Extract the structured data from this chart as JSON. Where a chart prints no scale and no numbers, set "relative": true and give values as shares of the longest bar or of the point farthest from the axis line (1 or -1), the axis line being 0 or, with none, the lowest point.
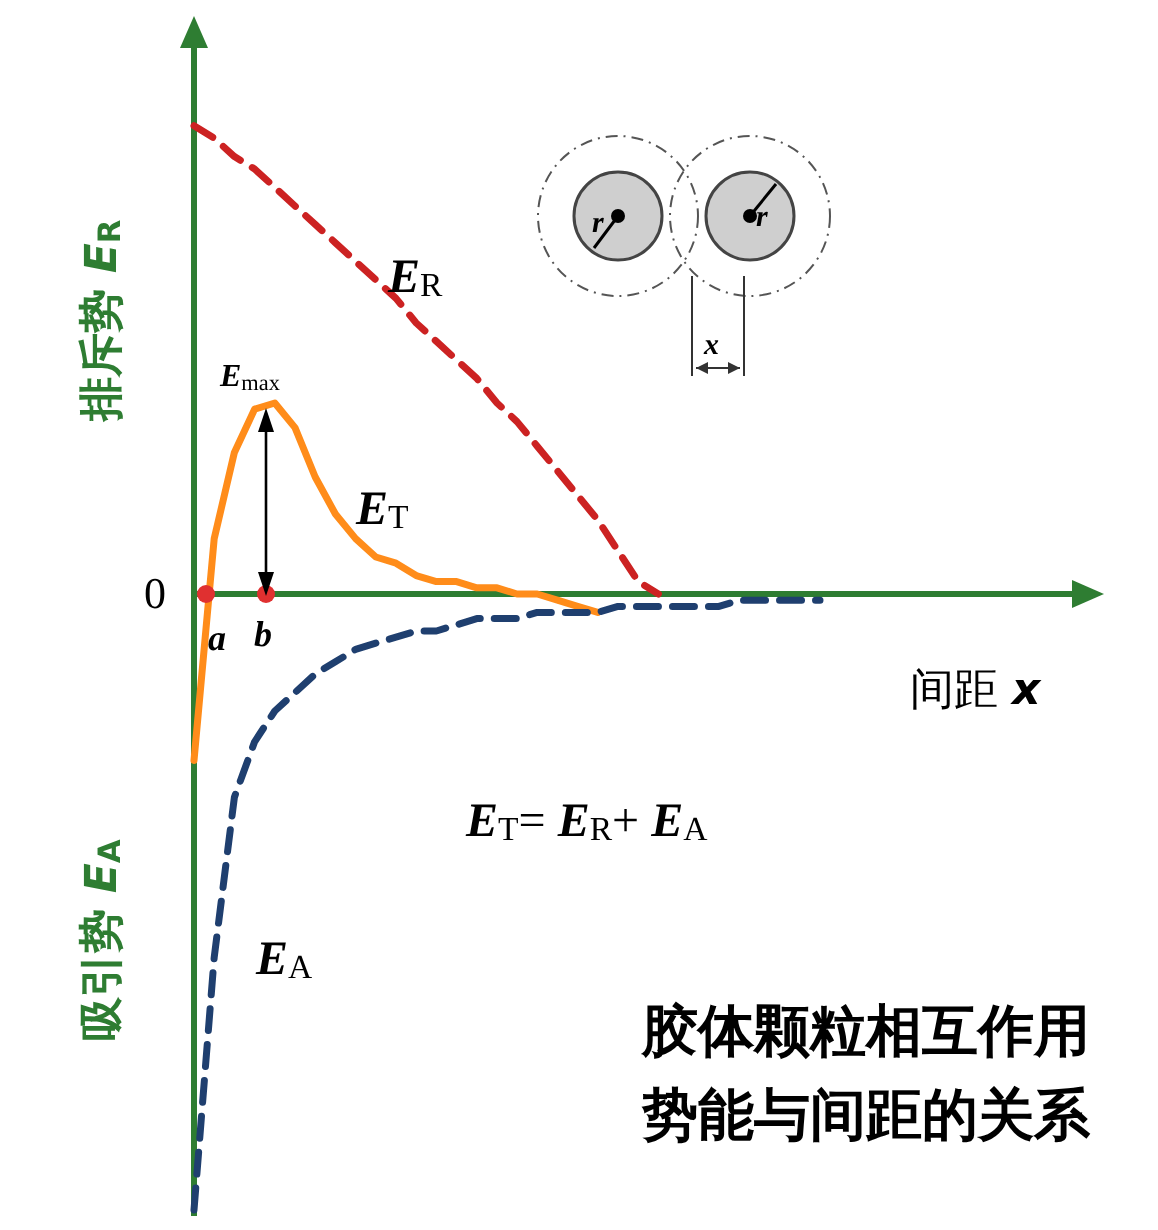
{
  "chart_data": {
    "type": "line",
    "relative": true,
    "legend": false,
    "marker": "none",
    "title": "胶体颗粒相互作用势能与间距的关系",
    "xlabel": "间距 *x*",
    "ylabel": "排斥势 *E*$_{R}$",
    "categories": [
      null,
      null,
      null,
      null,
      null,
      null,
      null,
      null,
      null,
      null,
      null,
      null,
      null,
      null,
      null,
      null,
      null,
      null,
      null,
      null,
      null,
      null,
      null,
      null,
      null,
      null,
      null,
      null,
      null,
      null,
      null,
      null
    ],
    "series": [
      {
        "name": "*E*$_{R}$",
        "color": "#cc2222",
        "line_style": "dashed",
        "values": [
          0.76,
          0.74,
          0.71,
          0.69,
          0.66,
          0.63,
          0.6,
          0.57,
          0.54,
          0.51,
          0.48,
          0.44,
          0.41,
          0.38,
          0.35,
          0.31,
          0.28,
          0.24,
          0.2,
          0.16,
          0.12,
          0.07,
          0.02,
          0,
          null,
          null,
          null,
          null,
          null,
          null,
          null,
          null
        ]
      },
      {
        "name": "*E*$_{T}$",
        "color": "#ff8c1a",
        "line_style": "solid",
        "values": [
          -0.27,
          0.09,
          0.23,
          0.3,
          0.31,
          0.27,
          0.19,
          0.13,
          0.09,
          0.06,
          0.05,
          0.03,
          0.02,
          0.02,
          0.01,
          0.01,
          0,
          0,
          -0.01,
          -0.02,
          -0.03,
          null,
          null,
          null,
          null,
          null,
          null,
          null,
          null,
          null,
          null,
          null
        ]
      },
      {
        "name": "*E*$_{A}$",
        "color": "#1f3f6f",
        "line_style": "dashed",
        "values": [
          -1,
          -0.59,
          -0.33,
          -0.24,
          -0.19,
          -0.16,
          -0.13,
          -0.11,
          -0.09,
          -0.08,
          -0.07,
          -0.06,
          -0.06,
          -0.05,
          -0.04,
          -0.04,
          -0.04,
          -0.03,
          -0.03,
          -0.03,
          -0.03,
          -0.02,
          -0.02,
          -0.02,
          -0.02,
          -0.02,
          -0.02,
          -0.01,
          -0.01,
          -0.01,
          -0.01,
          -0.01
        ]
      }
    ],
    "ref_lines": [
      {
        "axis": "y",
        "value": 0,
        "label": "0",
        "color": "#2e7d32"
      }
    ],
    "annotations": [
      "*a*",
      "*b*",
      "*E*$_{max}$",
      "*E*$_{T}$= *E*$_{R}$+ *E*$_{A}$",
      "吸引势 *E*$_{A}$",
      "*r*",
      "*r*",
      "*x*"
    ]
  }
}
